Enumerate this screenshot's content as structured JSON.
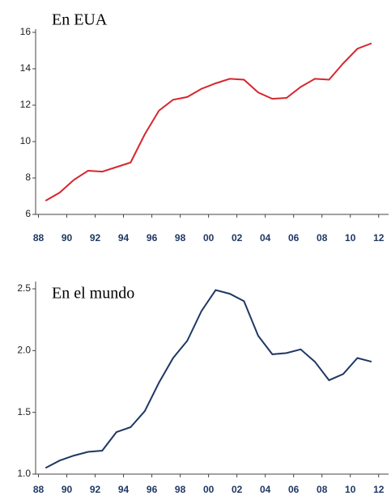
{
  "chart_data": [
    {
      "type": "line",
      "title": "En EUA",
      "x": [
        1988.5,
        1989.5,
        1990.5,
        1991.5,
        1992.5,
        1993.5,
        1994.5,
        1995.5,
        1996.5,
        1997.5,
        1998.5,
        1999.5,
        2000.5,
        2001.5,
        2002.5,
        2003.5,
        2004.5,
        2005.5,
        2006.5,
        2007.5,
        2008.5,
        2009.5,
        2010.5,
        2011.5
      ],
      "series": [
        {
          "color": "#d7262e",
          "values": [
            6.75,
            7.2,
            7.9,
            8.4,
            8.35,
            8.6,
            8.85,
            10.4,
            11.7,
            12.3,
            12.45,
            12.9,
            13.2,
            13.45,
            13.4,
            12.7,
            12.35,
            12.4,
            13.0,
            13.45,
            13.4,
            14.3,
            15.1,
            15.4
          ]
        }
      ],
      "xlim": [
        1987.8,
        2012.7
      ],
      "xticks": [
        {
          "value": 1988,
          "label": "88"
        },
        {
          "value": 1990,
          "label": "90"
        },
        {
          "value": 1992,
          "label": "92"
        },
        {
          "value": 1994,
          "label": "94"
        },
        {
          "value": 1996,
          "label": "96"
        },
        {
          "value": 1998,
          "label": "98"
        },
        {
          "value": 2000,
          "label": "00"
        },
        {
          "value": 2002,
          "label": "02"
        },
        {
          "value": 2004,
          "label": "04"
        },
        {
          "value": 2006,
          "label": "06"
        },
        {
          "value": 2008,
          "label": "08"
        },
        {
          "value": 2010,
          "label": "10"
        },
        {
          "value": 2012,
          "label": "12"
        }
      ],
      "ylim": [
        6,
        16
      ],
      "yticks": [
        6,
        8,
        10,
        12,
        14,
        16
      ]
    },
    {
      "type": "line",
      "title": "En el mundo",
      "x": [
        1988.5,
        1989.5,
        1990.5,
        1991.5,
        1992.5,
        1993.5,
        1994.5,
        1995.5,
        1996.5,
        1997.5,
        1998.5,
        1999.5,
        2000.5,
        2001.5,
        2002.5,
        2003.5,
        2004.5,
        2005.5,
        2006.5,
        2007.5,
        2008.5,
        2009.5,
        2010.5,
        2011.5
      ],
      "series": [
        {
          "color": "#1f3864",
          "values": [
            1.05,
            1.11,
            1.15,
            1.18,
            1.19,
            1.34,
            1.38,
            1.51,
            1.74,
            1.94,
            2.08,
            2.32,
            2.49,
            2.46,
            2.4,
            2.12,
            1.97,
            1.98,
            2.01,
            1.91,
            1.76,
            1.81,
            1.94,
            1.91
          ]
        }
      ],
      "xlim": [
        1987.8,
        2012.7
      ],
      "xticks": [
        {
          "value": 1988,
          "label": "88"
        },
        {
          "value": 1990,
          "label": "90"
        },
        {
          "value": 1992,
          "label": "92"
        },
        {
          "value": 1994,
          "label": "94"
        },
        {
          "value": 1996,
          "label": "96"
        },
        {
          "value": 1998,
          "label": "98"
        },
        {
          "value": 2000,
          "label": "00"
        },
        {
          "value": 2002,
          "label": "02"
        },
        {
          "value": 2004,
          "label": "04"
        },
        {
          "value": 2006,
          "label": "06"
        },
        {
          "value": 2008,
          "label": "08"
        },
        {
          "value": 2010,
          "label": "10"
        },
        {
          "value": 2012,
          "label": "12"
        }
      ],
      "ylim": [
        1,
        2.5
      ],
      "yticks": [
        {
          "value": 1,
          "label": "1.0"
        },
        1.5,
        {
          "value": 2,
          "label": "2.0"
        },
        2.5
      ]
    }
  ]
}
